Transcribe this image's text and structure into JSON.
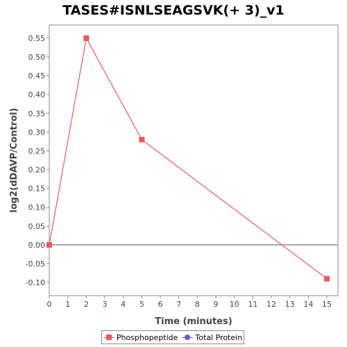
{
  "chart_data": {
    "type": "line",
    "title": "TASES#ISNLSEAGSVK(+ 3)_v1",
    "xlabel": "Time (minutes)",
    "ylabel": "log2(dDAVP/Control)",
    "xlim": [
      0,
      15.6
    ],
    "ylim": [
      -0.135,
      0.585
    ],
    "x_ticks": [
      0,
      1,
      2,
      3,
      4,
      5,
      6,
      7,
      8,
      9,
      10,
      11,
      12,
      13,
      14,
      15
    ],
    "y_ticks": [
      -0.1,
      -0.05,
      0.0,
      0.05,
      0.1,
      0.15,
      0.2,
      0.25,
      0.3,
      0.35,
      0.4,
      0.45,
      0.5,
      0.55
    ],
    "y_tick_labels": [
      "-0.10",
      "-0.05",
      "0.00",
      "0.05",
      "0.10",
      "0.15",
      "0.20",
      "0.25",
      "0.30",
      "0.35",
      "0.40",
      "0.45",
      "0.50",
      "0.55"
    ],
    "series": [
      {
        "name": "Phosphopeptide",
        "color": "#e8595a",
        "marker": "square",
        "x": [
          0,
          2,
          5,
          15
        ],
        "y": [
          0.0,
          0.55,
          0.28,
          -0.09
        ]
      },
      {
        "name": "Total Protein",
        "color": "#5b5bef",
        "marker": "circle",
        "x": [],
        "y": []
      }
    ],
    "zero_line": true,
    "grid": false,
    "legend_position": "bottom"
  }
}
